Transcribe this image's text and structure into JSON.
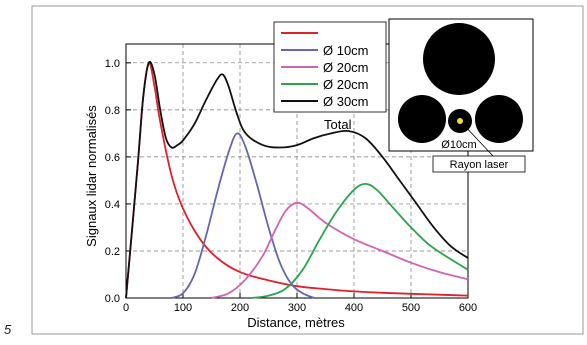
{
  "page_number": "5",
  "chart_data": {
    "type": "line",
    "xlabel": "Distance, mètres",
    "ylabel": "Signaux lidar normalisés",
    "xlim": [
      0,
      600
    ],
    "ylim": [
      0,
      1.08
    ],
    "x_ticks": [
      "0",
      "100",
      "200",
      "300",
      "400",
      "500",
      "600"
    ],
    "y_ticks": [
      "0.0",
      "0.2",
      "0.4",
      "0.6",
      "0.8",
      "1.0"
    ],
    "grid": true,
    "legend_position": "top-right",
    "series": [
      {
        "name": "",
        "color": "#e0202a",
        "points": [
          [
            0,
            0
          ],
          [
            20,
            0.55
          ],
          [
            30,
            0.85
          ],
          [
            40,
            1.0
          ],
          [
            50,
            0.9
          ],
          [
            60,
            0.75
          ],
          [
            80,
            0.52
          ],
          [
            100,
            0.38
          ],
          [
            130,
            0.25
          ],
          [
            160,
            0.17
          ],
          [
            200,
            0.11
          ],
          [
            250,
            0.075
          ],
          [
            300,
            0.05
          ],
          [
            350,
            0.038
          ],
          [
            400,
            0.028
          ],
          [
            450,
            0.022
          ],
          [
            500,
            0.018
          ],
          [
            550,
            0.014
          ],
          [
            600,
            0.01
          ]
        ]
      },
      {
        "name": "Ø 10cm",
        "color": "#6566b0",
        "points": [
          [
            80,
            0
          ],
          [
            100,
            0.02
          ],
          [
            120,
            0.1
          ],
          [
            140,
            0.26
          ],
          [
            160,
            0.45
          ],
          [
            180,
            0.62
          ],
          [
            195,
            0.7
          ],
          [
            210,
            0.64
          ],
          [
            230,
            0.48
          ],
          [
            250,
            0.3
          ],
          [
            270,
            0.15
          ],
          [
            290,
            0.06
          ],
          [
            310,
            0.02
          ],
          [
            330,
            0.0
          ]
        ]
      },
      {
        "name": "Ø 20cm",
        "color": "#d064b4",
        "points": [
          [
            150,
            0
          ],
          [
            180,
            0.02
          ],
          [
            210,
            0.08
          ],
          [
            240,
            0.18
          ],
          [
            260,
            0.28
          ],
          [
            280,
            0.37
          ],
          [
            300,
            0.405
          ],
          [
            320,
            0.38
          ],
          [
            350,
            0.32
          ],
          [
            400,
            0.25
          ],
          [
            450,
            0.2
          ],
          [
            500,
            0.15
          ],
          [
            550,
            0.11
          ],
          [
            600,
            0.08
          ]
        ]
      },
      {
        "name": "Ø 20cm",
        "color": "#2ca44a",
        "points": [
          [
            220,
            0
          ],
          [
            250,
            0.01
          ],
          [
            280,
            0.04
          ],
          [
            310,
            0.12
          ],
          [
            340,
            0.25
          ],
          [
            370,
            0.37
          ],
          [
            400,
            0.46
          ],
          [
            420,
            0.485
          ],
          [
            440,
            0.46
          ],
          [
            470,
            0.38
          ],
          [
            500,
            0.3
          ],
          [
            530,
            0.23
          ],
          [
            560,
            0.18
          ],
          [
            600,
            0.12
          ]
        ]
      },
      {
        "name": "Ø 30cm",
        "color": "#111111",
        "points": [
          [
            0,
            0
          ],
          [
            20,
            0.55
          ],
          [
            30,
            0.85
          ],
          [
            40,
            1.0
          ],
          [
            50,
            0.95
          ],
          [
            60,
            0.8
          ],
          [
            70,
            0.68
          ],
          [
            80,
            0.64
          ],
          [
            90,
            0.65
          ],
          [
            100,
            0.67
          ],
          [
            120,
            0.74
          ],
          [
            140,
            0.84
          ],
          [
            160,
            0.93
          ],
          [
            170,
            0.95
          ],
          [
            180,
            0.9
          ],
          [
            195,
            0.78
          ],
          [
            210,
            0.7
          ],
          [
            240,
            0.65
          ],
          [
            270,
            0.64
          ],
          [
            300,
            0.65
          ],
          [
            330,
            0.68
          ],
          [
            360,
            0.7
          ],
          [
            390,
            0.71
          ],
          [
            420,
            0.68
          ],
          [
            450,
            0.6
          ],
          [
            480,
            0.5
          ],
          [
            510,
            0.4
          ],
          [
            540,
            0.3
          ],
          [
            570,
            0.22
          ],
          [
            600,
            0.17
          ]
        ]
      }
    ],
    "legend_entries": [
      {
        "label": "",
        "color": "#e0202a"
      },
      {
        "label": "Ø 10cm",
        "color": "#6566b0"
      },
      {
        "label": "Ø 20cm",
        "color": "#d064b4"
      },
      {
        "label": "Ø 20cm",
        "color": "#2ca44a"
      },
      {
        "label": "Ø 30cm",
        "color": "#111111"
      }
    ],
    "annotation_total": "Total"
  },
  "inset": {
    "small_circle_label": "Ø10cm",
    "laser_label": "Rayon laser"
  }
}
